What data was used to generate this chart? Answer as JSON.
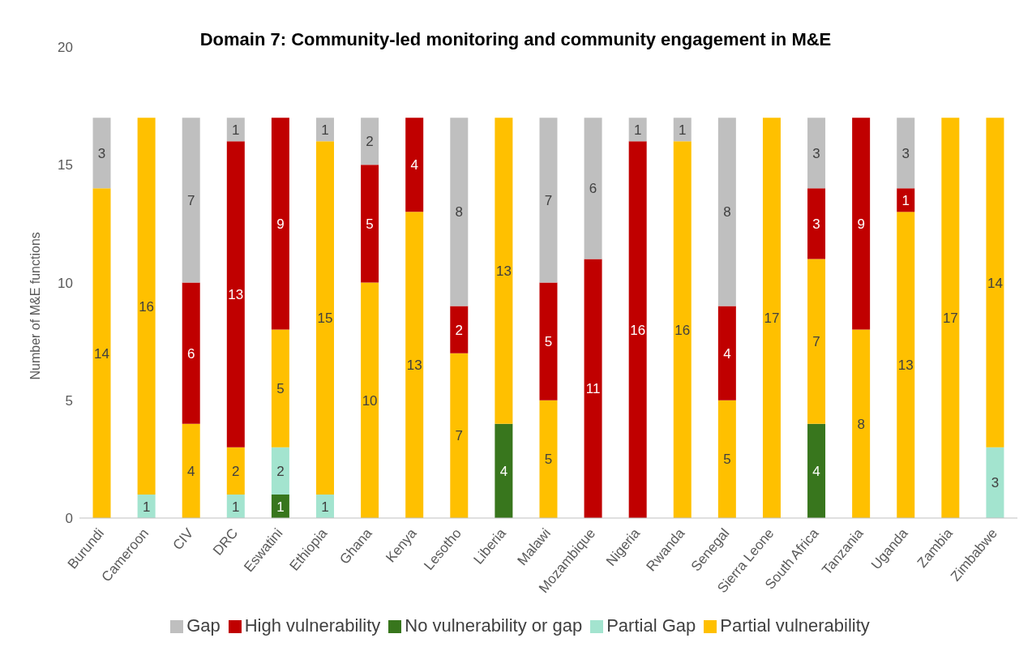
{
  "chart_data": {
    "type": "bar",
    "title": "Domain 7: Community-led monitoring and community engagement in M&E",
    "ylabel": "Number of M&E functions",
    "categories": [
      "Burundi",
      "Cameroon",
      "CIV",
      "DRC",
      "Eswatini",
      "Ethiopia",
      "Ghana",
      "Kenya",
      "Lesotho",
      "Liberia",
      "Malawi",
      "Mozambique",
      "Nigeria",
      "Rwanda",
      "Senegal",
      "Sierra Leone",
      "South Africa",
      "Tanzania",
      "Uganda",
      "Zambia",
      "Zimbabwe"
    ],
    "stacked": true,
    "data_labels": true,
    "legend": "bottom",
    "grid": false,
    "ylim": [
      0,
      20
    ],
    "yticks": [
      0,
      5,
      10,
      15,
      20
    ],
    "series": [
      {
        "name": "No vulnerability or gap",
        "color": "#38761d",
        "values": [
          null,
          null,
          null,
          null,
          1,
          null,
          null,
          null,
          null,
          4,
          null,
          null,
          null,
          null,
          null,
          null,
          4,
          null,
          null,
          null,
          null
        ]
      },
      {
        "name": "Partial Gap",
        "color": "#a3e4cf",
        "values": [
          null,
          1,
          null,
          1,
          2,
          1,
          null,
          null,
          null,
          null,
          null,
          null,
          null,
          null,
          null,
          null,
          null,
          null,
          null,
          null,
          3
        ]
      },
      {
        "name": "Partial vulnerability",
        "color": "#ffc000",
        "values": [
          14,
          16,
          4,
          2,
          5,
          15,
          10,
          13,
          7,
          13,
          5,
          null,
          null,
          16,
          5,
          17,
          7,
          8,
          13,
          17,
          14
        ]
      },
      {
        "name": "High  vulnerability",
        "color": "#c00000",
        "values": [
          null,
          null,
          6,
          13,
          9,
          null,
          5,
          4,
          2,
          null,
          5,
          11,
          16,
          null,
          4,
          null,
          3,
          9,
          1,
          null,
          null
        ]
      },
      {
        "name": "Gap",
        "color": "#bfbfbf",
        "values": [
          3,
          null,
          7,
          1,
          null,
          1,
          2,
          null,
          8,
          null,
          7,
          6,
          1,
          1,
          8,
          null,
          3,
          null,
          3,
          null,
          null
        ]
      }
    ]
  }
}
